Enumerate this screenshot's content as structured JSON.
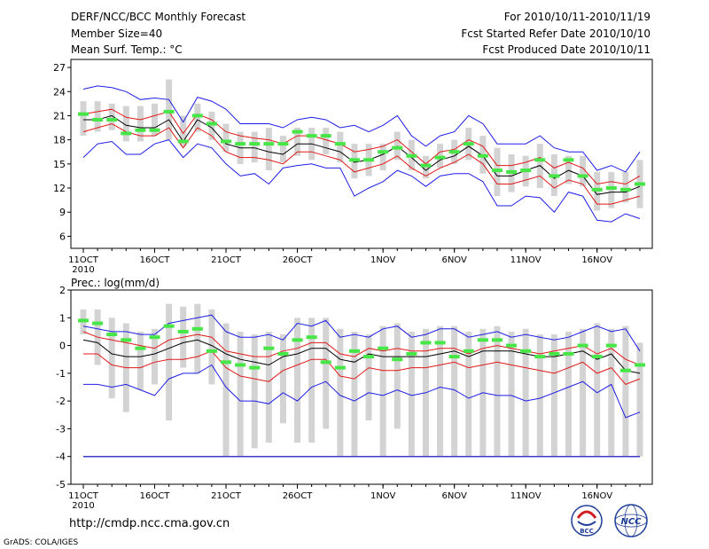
{
  "header": {
    "title": "DERF/NCC/BCC Monthly Forecast",
    "member_size": "Member Size=40",
    "variable": "Mean Surf. Temp.: °C",
    "period": "For 2010/10/11-2010/11/19",
    "refer_date": "Fcst Started Refer Date 2010/10/10",
    "produced_date": "Fcst Produced Date 2010/10/11"
  },
  "footer": {
    "url": "http://cmdp.ncc.cma.gov.cn",
    "grads": "GrADS: COLA/IGES",
    "logo_left_text": "BCC",
    "logo_right_text": "NCC"
  },
  "colors": {
    "box": "#d3d3d3",
    "median": "#46e646",
    "mean": "#000000",
    "stddev": "#e11919",
    "extreme": "#1e1ee6",
    "zero_line": "#3c3cc8"
  },
  "chart_data": [
    {
      "type": "line",
      "title": "Mean Surf. Temp.: °C",
      "ylabel": "°C",
      "ylim": [
        4.5,
        28
      ],
      "yticks": [
        6,
        9,
        12,
        15,
        18,
        21,
        24,
        27
      ],
      "x": [
        1,
        2,
        3,
        4,
        5,
        6,
        7,
        8,
        9,
        10,
        11,
        12,
        13,
        14,
        15,
        16,
        17,
        18,
        19,
        20,
        21,
        22,
        23,
        24,
        25,
        26,
        27,
        28,
        29,
        30,
        31,
        32,
        33,
        34,
        35,
        36,
        37,
        38,
        39,
        40
      ],
      "xticks": [
        {
          "x": 1,
          "label": "11OCT",
          "sub": "2010"
        },
        {
          "x": 6,
          "label": "16OCT"
        },
        {
          "x": 11,
          "label": "21OCT"
        },
        {
          "x": 16,
          "label": "26OCT"
        },
        {
          "x": 22,
          "label": "1NOV"
        },
        {
          "x": 27,
          "label": "6NOV"
        },
        {
          "x": 32,
          "label": "11NOV"
        },
        {
          "x": 37,
          "label": "16NOV"
        }
      ],
      "series": [
        {
          "name": "ensemble max",
          "color_key": "extreme",
          "values": [
            24.3,
            24.7,
            24.5,
            24.0,
            23.0,
            23.2,
            23.0,
            20.2,
            23.3,
            22.8,
            21.8,
            20.0,
            20.0,
            20.0,
            19.5,
            20.5,
            20.8,
            20.5,
            19.5,
            19.8,
            19.0,
            19.8,
            21.0,
            18.5,
            17.2,
            18.5,
            19.0,
            21.0,
            20.0,
            17.5,
            17.5,
            17.5,
            18.5,
            17.0,
            16.5,
            16.5,
            14.2,
            14.8,
            14.0,
            16.5
          ]
        },
        {
          "name": "mean + std",
          "color_key": "stddev",
          "values": [
            21.2,
            21.5,
            21.8,
            20.8,
            20.5,
            21.0,
            21.5,
            18.8,
            21.2,
            20.5,
            19.0,
            18.5,
            18.2,
            18.0,
            17.5,
            18.5,
            18.5,
            18.0,
            17.5,
            16.5,
            16.8,
            17.2,
            18.0,
            16.5,
            15.0,
            16.5,
            16.8,
            18.0,
            17.2,
            14.8,
            14.8,
            15.2,
            15.8,
            14.5,
            15.2,
            14.5,
            12.5,
            12.8,
            12.5,
            13.5
          ]
        },
        {
          "name": "ensemble mean",
          "color_key": "mean",
          "values": [
            20.5,
            20.5,
            21.0,
            19.8,
            19.5,
            19.5,
            20.5,
            17.8,
            20.5,
            19.5,
            17.5,
            17.0,
            17.0,
            16.5,
            16.2,
            17.5,
            17.5,
            17.0,
            16.5,
            15.2,
            15.5,
            16.2,
            17.2,
            15.8,
            14.2,
            15.5,
            16.0,
            17.2,
            16.0,
            13.5,
            13.5,
            14.2,
            14.8,
            13.2,
            14.2,
            13.5,
            11.2,
            11.5,
            11.5,
            12.2
          ]
        },
        {
          "name": "mean - std",
          "color_key": "stddev",
          "values": [
            19.0,
            19.5,
            20.0,
            19.0,
            18.5,
            18.5,
            19.5,
            17.0,
            19.5,
            18.5,
            16.5,
            15.8,
            15.8,
            15.5,
            15.0,
            16.5,
            16.5,
            16.0,
            15.5,
            14.0,
            14.5,
            15.0,
            16.0,
            14.5,
            13.5,
            14.5,
            15.2,
            16.2,
            15.0,
            12.5,
            12.5,
            13.0,
            13.5,
            12.0,
            13.0,
            12.5,
            10.0,
            10.0,
            10.5,
            11.0
          ]
        },
        {
          "name": "ensemble min",
          "color_key": "extreme",
          "values": [
            15.8,
            17.5,
            17.8,
            16.2,
            16.2,
            17.5,
            18.0,
            15.8,
            17.5,
            17.0,
            15.0,
            13.5,
            13.8,
            12.5,
            14.5,
            14.8,
            15.0,
            14.5,
            14.5,
            11.0,
            12.0,
            12.8,
            14.2,
            13.5,
            12.2,
            13.5,
            13.8,
            13.8,
            12.8,
            9.8,
            9.8,
            11.0,
            10.8,
            9.0,
            11.5,
            11.0,
            8.0,
            7.8,
            8.8,
            8.2
          ]
        },
        {
          "name": "box upper",
          "color_key": "box",
          "values": [
            22.8,
            22.8,
            22.5,
            22.2,
            22.2,
            22.5,
            25.5,
            21.0,
            22.5,
            21.5,
            20.0,
            19.0,
            19.0,
            19.5,
            18.5,
            19.5,
            19.5,
            19.5,
            19.0,
            17.5,
            17.5,
            17.5,
            19.0,
            18.0,
            16.0,
            17.5,
            18.0,
            19.5,
            18.5,
            17.0,
            16.2,
            16.0,
            17.5,
            16.2,
            16.0,
            16.0,
            14.0,
            14.0,
            14.0,
            15.5
          ]
        },
        {
          "name": "box lower",
          "color_key": "box",
          "values": [
            18.5,
            19.0,
            19.2,
            17.8,
            17.8,
            18.5,
            18.0,
            17.2,
            19.0,
            18.0,
            16.5,
            15.0,
            15.2,
            14.2,
            15.2,
            16.0,
            15.5,
            16.2,
            15.2,
            13.2,
            13.5,
            14.2,
            15.5,
            14.2,
            13.2,
            14.5,
            15.0,
            15.5,
            13.8,
            11.0,
            11.5,
            12.2,
            12.0,
            11.0,
            12.5,
            12.2,
            9.2,
            9.5,
            10.2,
            9.5
          ]
        },
        {
          "name": "median",
          "color_key": "median",
          "values": [
            21.2,
            20.5,
            20.5,
            18.8,
            19.2,
            19.2,
            21.5,
            17.8,
            21.0,
            20.0,
            17.8,
            17.5,
            17.5,
            17.5,
            17.5,
            19.0,
            18.5,
            18.5,
            17.5,
            15.5,
            15.5,
            16.5,
            17.0,
            16.0,
            14.8,
            15.8,
            16.5,
            17.5,
            16.0,
            14.2,
            14.0,
            14.2,
            15.5,
            13.5,
            15.5,
            13.5,
            11.8,
            12.0,
            11.8,
            12.5
          ]
        }
      ]
    },
    {
      "type": "line",
      "title": "Prec.: log(mm/d)",
      "ylabel": "log(mm/d)",
      "ylim": [
        -5,
        2
      ],
      "yticks": [
        -5,
        -4,
        -3,
        -2,
        -1,
        0,
        1,
        2
      ],
      "x": [
        1,
        2,
        3,
        4,
        5,
        6,
        7,
        8,
        9,
        10,
        11,
        12,
        13,
        14,
        15,
        16,
        17,
        18,
        19,
        20,
        21,
        22,
        23,
        24,
        25,
        26,
        27,
        28,
        29,
        30,
        31,
        32,
        33,
        34,
        35,
        36,
        37,
        38,
        39,
        40
      ],
      "xticks": [
        {
          "x": 1,
          "label": "11OCT",
          "sub": "2010"
        },
        {
          "x": 6,
          "label": "16OCT"
        },
        {
          "x": 11,
          "label": "21OCT"
        },
        {
          "x": 16,
          "label": "26OCT"
        },
        {
          "x": 22,
          "label": "1NOV"
        },
        {
          "x": 27,
          "label": "6NOV"
        },
        {
          "x": 32,
          "label": "11NOV"
        },
        {
          "x": 37,
          "label": "16NOV"
        }
      ],
      "series": [
        {
          "name": "ensemble max",
          "color_key": "extreme",
          "values": [
            0.7,
            0.6,
            0.5,
            0.5,
            0.4,
            0.4,
            0.8,
            0.9,
            1.0,
            1.1,
            0.5,
            0.3,
            0.3,
            0.4,
            0.2,
            0.8,
            0.7,
            0.9,
            0.3,
            0.4,
            0.3,
            0.6,
            0.7,
            0.3,
            0.4,
            0.6,
            0.6,
            0.3,
            0.4,
            0.5,
            0.3,
            0.4,
            0.3,
            0.2,
            0.3,
            0.5,
            0.7,
            0.5,
            0.6,
            -0.2
          ]
        },
        {
          "name": "mean + std",
          "color_key": "stddev",
          "values": [
            0.5,
            0.3,
            0.2,
            0.1,
            0.0,
            -0.1,
            0.2,
            0.3,
            0.4,
            0.3,
            -0.2,
            -0.3,
            -0.4,
            -0.4,
            -0.2,
            -0.1,
            0.1,
            0.1,
            -0.3,
            -0.4,
            -0.1,
            -0.2,
            -0.1,
            -0.2,
            -0.2,
            -0.1,
            -0.1,
            -0.3,
            -0.1,
            0.0,
            -0.1,
            -0.2,
            -0.3,
            -0.2,
            -0.1,
            0.0,
            -0.3,
            -0.1,
            -0.5,
            -0.7
          ]
        },
        {
          "name": "ensemble mean",
          "color_key": "mean",
          "values": [
            0.2,
            0.1,
            -0.3,
            -0.4,
            -0.4,
            -0.3,
            -0.1,
            0.1,
            0.2,
            0.0,
            -0.3,
            -0.5,
            -0.6,
            -0.7,
            -0.4,
            -0.3,
            -0.1,
            -0.1,
            -0.5,
            -0.6,
            -0.3,
            -0.4,
            -0.4,
            -0.4,
            -0.4,
            -0.3,
            -0.2,
            -0.4,
            -0.2,
            -0.2,
            -0.2,
            -0.3,
            -0.4,
            -0.4,
            -0.3,
            -0.2,
            -0.5,
            -0.3,
            -0.9,
            -1.0
          ]
        },
        {
          "name": "mean - std",
          "color_key": "stddev",
          "values": [
            -0.3,
            -0.3,
            -0.7,
            -0.8,
            -0.8,
            -0.6,
            -0.5,
            -0.5,
            -0.4,
            -0.2,
            -0.8,
            -1.1,
            -1.2,
            -1.3,
            -0.9,
            -0.7,
            -0.5,
            -0.5,
            -1.1,
            -1.2,
            -0.8,
            -0.9,
            -0.9,
            -0.8,
            -0.8,
            -0.7,
            -0.6,
            -0.8,
            -0.7,
            -0.6,
            -0.7,
            -0.8,
            -0.9,
            -1.0,
            -0.8,
            -0.6,
            -1.0,
            -0.8,
            -1.4,
            -1.2
          ]
        },
        {
          "name": "ensemble min",
          "color_key": "extreme",
          "values": [
            -1.4,
            -1.4,
            -1.5,
            -1.4,
            -1.6,
            -1.8,
            -1.2,
            -1.0,
            -1.0,
            -0.7,
            -1.5,
            -2.0,
            -2.0,
            -2.1,
            -1.7,
            -2.0,
            -1.5,
            -1.3,
            -1.8,
            -2.0,
            -1.7,
            -1.8,
            -1.6,
            -1.8,
            -1.7,
            -1.5,
            -1.6,
            -1.9,
            -1.7,
            -1.8,
            -1.8,
            -2.0,
            -1.9,
            -1.7,
            -1.5,
            -1.3,
            -1.7,
            -1.4,
            -2.6,
            -2.4
          ]
        },
        {
          "name": "box upper",
          "color_key": "box",
          "values": [
            1.3,
            1.3,
            1.0,
            0.8,
            0.5,
            0.6,
            1.5,
            1.4,
            1.5,
            1.3,
            0.8,
            0.5,
            0.4,
            0.5,
            0.4,
            1.0,
            1.0,
            1.0,
            0.6,
            0.5,
            0.4,
            0.7,
            0.8,
            0.5,
            0.6,
            0.7,
            0.7,
            0.5,
            0.6,
            0.7,
            0.5,
            0.6,
            0.4,
            0.4,
            0.5,
            0.6,
            0.8,
            0.6,
            0.7,
            0.1
          ]
        },
        {
          "name": "box lower",
          "color_key": "box",
          "values": [
            0.4,
            -0.7,
            -1.9,
            -2.4,
            -1.6,
            -1.4,
            -2.7,
            -0.8,
            -1.0,
            -1.4,
            -4.0,
            -4.0,
            -3.7,
            -3.5,
            -2.8,
            -3.5,
            -3.5,
            -3.0,
            -4.0,
            -4.0,
            -2.7,
            -4.0,
            -3.0,
            -4.0,
            -4.0,
            -4.0,
            -4.0,
            -4.0,
            -4.0,
            -4.0,
            -4.0,
            -4.0,
            -4.0,
            -4.0,
            -4.0,
            -4.0,
            -4.0,
            -4.0,
            -4.0,
            -4.0
          ]
        },
        {
          "name": "median",
          "color_key": "median",
          "values": [
            0.9,
            0.8,
            0.4,
            0.2,
            -0.1,
            0.3,
            0.7,
            0.5,
            0.6,
            -0.2,
            -0.6,
            -0.7,
            -0.8,
            -0.1,
            -0.3,
            0.2,
            0.3,
            -0.6,
            -0.8,
            -0.2,
            -0.4,
            -0.1,
            -0.5,
            -0.3,
            0.1,
            0.1,
            -0.4,
            -0.2,
            0.2,
            0.2,
            0.0,
            -0.2,
            -0.4,
            -0.3,
            -0.3,
            0.0,
            -0.4,
            0.0,
            -0.9,
            -0.7
          ]
        },
        {
          "name": "lower bound",
          "color_key": "zero_line",
          "values": [
            -4,
            -4,
            -4,
            -4,
            -4,
            -4,
            -4,
            -4,
            -4,
            -4,
            -4,
            -4,
            -4,
            -4,
            -4,
            -4,
            -4,
            -4,
            -4,
            -4,
            -4,
            -4,
            -4,
            -4,
            -4,
            -4,
            -4,
            -4,
            -4,
            -4,
            -4,
            -4,
            -4,
            -4,
            -4,
            -4,
            -4,
            -4,
            -4,
            -4
          ]
        }
      ]
    }
  ],
  "prec_label": "Prec.: log(mm/d)"
}
